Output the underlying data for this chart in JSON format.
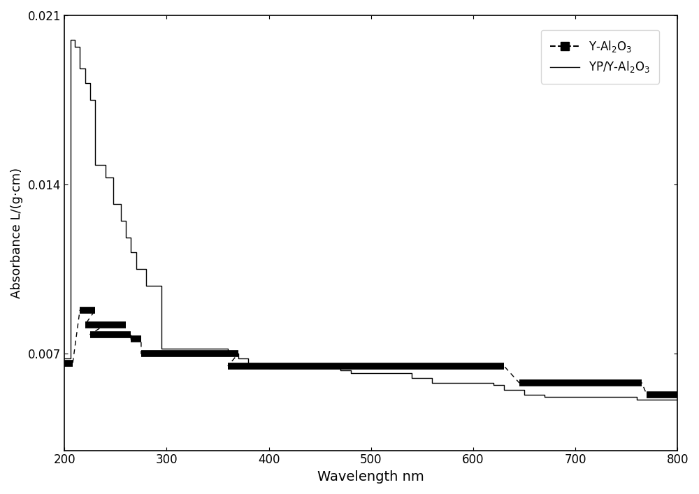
{
  "xlabel": "Wavelength nm",
  "ylabel": "Absorbance L/(g.cm)",
  "xlim": [
    200,
    800
  ],
  "ylim": [
    0.003,
    0.021
  ],
  "yticks": [
    0.007,
    0.014,
    0.021
  ],
  "xticks": [
    200,
    300,
    400,
    500,
    600,
    700,
    800
  ],
  "background_color": "#ffffff",
  "line_color": "#000000",
  "series1_x": [
    200,
    206,
    206,
    210,
    210,
    215,
    215,
    220,
    220,
    225,
    225,
    230,
    230,
    240,
    240,
    248,
    248,
    255,
    255,
    260,
    260,
    265,
    265,
    270,
    270,
    280,
    280,
    295,
    295,
    360,
    360,
    370,
    370,
    380,
    380,
    390,
    390,
    400,
    400,
    470,
    470,
    480,
    480,
    540,
    540,
    560,
    560,
    620,
    620,
    630,
    630,
    650,
    650,
    670,
    670,
    760,
    760,
    800
  ],
  "series1_y": [
    0.0068,
    0.0068,
    0.02,
    0.02,
    0.0197,
    0.0197,
    0.0188,
    0.0188,
    0.0182,
    0.0182,
    0.0175,
    0.0175,
    0.0148,
    0.0148,
    0.0143,
    0.0143,
    0.0132,
    0.0132,
    0.0125,
    0.0125,
    0.0118,
    0.0118,
    0.0112,
    0.0112,
    0.0105,
    0.0105,
    0.0098,
    0.0098,
    0.0072,
    0.0072,
    0.007,
    0.007,
    0.0068,
    0.0068,
    0.0066,
    0.0066,
    0.0065,
    0.0065,
    0.0064,
    0.0064,
    0.0063,
    0.0063,
    0.0062,
    0.0062,
    0.006,
    0.006,
    0.0058,
    0.0058,
    0.0057,
    0.0057,
    0.0055,
    0.0055,
    0.0053,
    0.0053,
    0.0052,
    0.0052,
    0.0051,
    0.0051
  ],
  "thick_segments": [
    {
      "x": [
        200,
        208
      ],
      "y": [
        0.0066,
        0.0066
      ]
    },
    {
      "x": [
        215,
        230
      ],
      "y": [
        0.0088,
        0.0088
      ]
    },
    {
      "x": [
        220,
        240
      ],
      "y": [
        0.0082,
        0.0082
      ]
    },
    {
      "x": [
        225,
        265
      ],
      "y": [
        0.0078,
        0.0078
      ]
    },
    {
      "x": [
        240,
        260
      ],
      "y": [
        0.0082,
        0.0082
      ]
    },
    {
      "x": [
        265,
        275
      ],
      "y": [
        0.0076,
        0.0076
      ]
    },
    {
      "x": [
        275,
        370
      ],
      "y": [
        0.007,
        0.007
      ]
    },
    {
      "x": [
        360,
        630
      ],
      "y": [
        0.0065,
        0.0065
      ]
    },
    {
      "x": [
        645,
        765
      ],
      "y": [
        0.0058,
        0.0058
      ]
    },
    {
      "x": [
        770,
        800
      ],
      "y": [
        0.0053,
        0.0053
      ]
    }
  ],
  "dashed_segments": [
    {
      "x": [
        200,
        208
      ],
      "y": [
        0.0066,
        0.0066
      ]
    },
    {
      "x": [
        215,
        230
      ],
      "y": [
        0.0088,
        0.0088
      ]
    },
    {
      "x": [
        220,
        240
      ],
      "y": [
        0.0082,
        0.0082
      ]
    },
    {
      "x": [
        225,
        265
      ],
      "y": [
        0.0078,
        0.0078
      ]
    },
    {
      "x": [
        265,
        275
      ],
      "y": [
        0.0076,
        0.0076
      ]
    },
    {
      "x": [
        275,
        370
      ],
      "y": [
        0.007,
        0.007
      ]
    },
    {
      "x": [
        360,
        630
      ],
      "y": [
        0.0065,
        0.0065
      ]
    },
    {
      "x": [
        645,
        765
      ],
      "y": [
        0.0058,
        0.0058
      ]
    },
    {
      "x": [
        770,
        800
      ],
      "y": [
        0.0053,
        0.0053
      ]
    }
  ]
}
